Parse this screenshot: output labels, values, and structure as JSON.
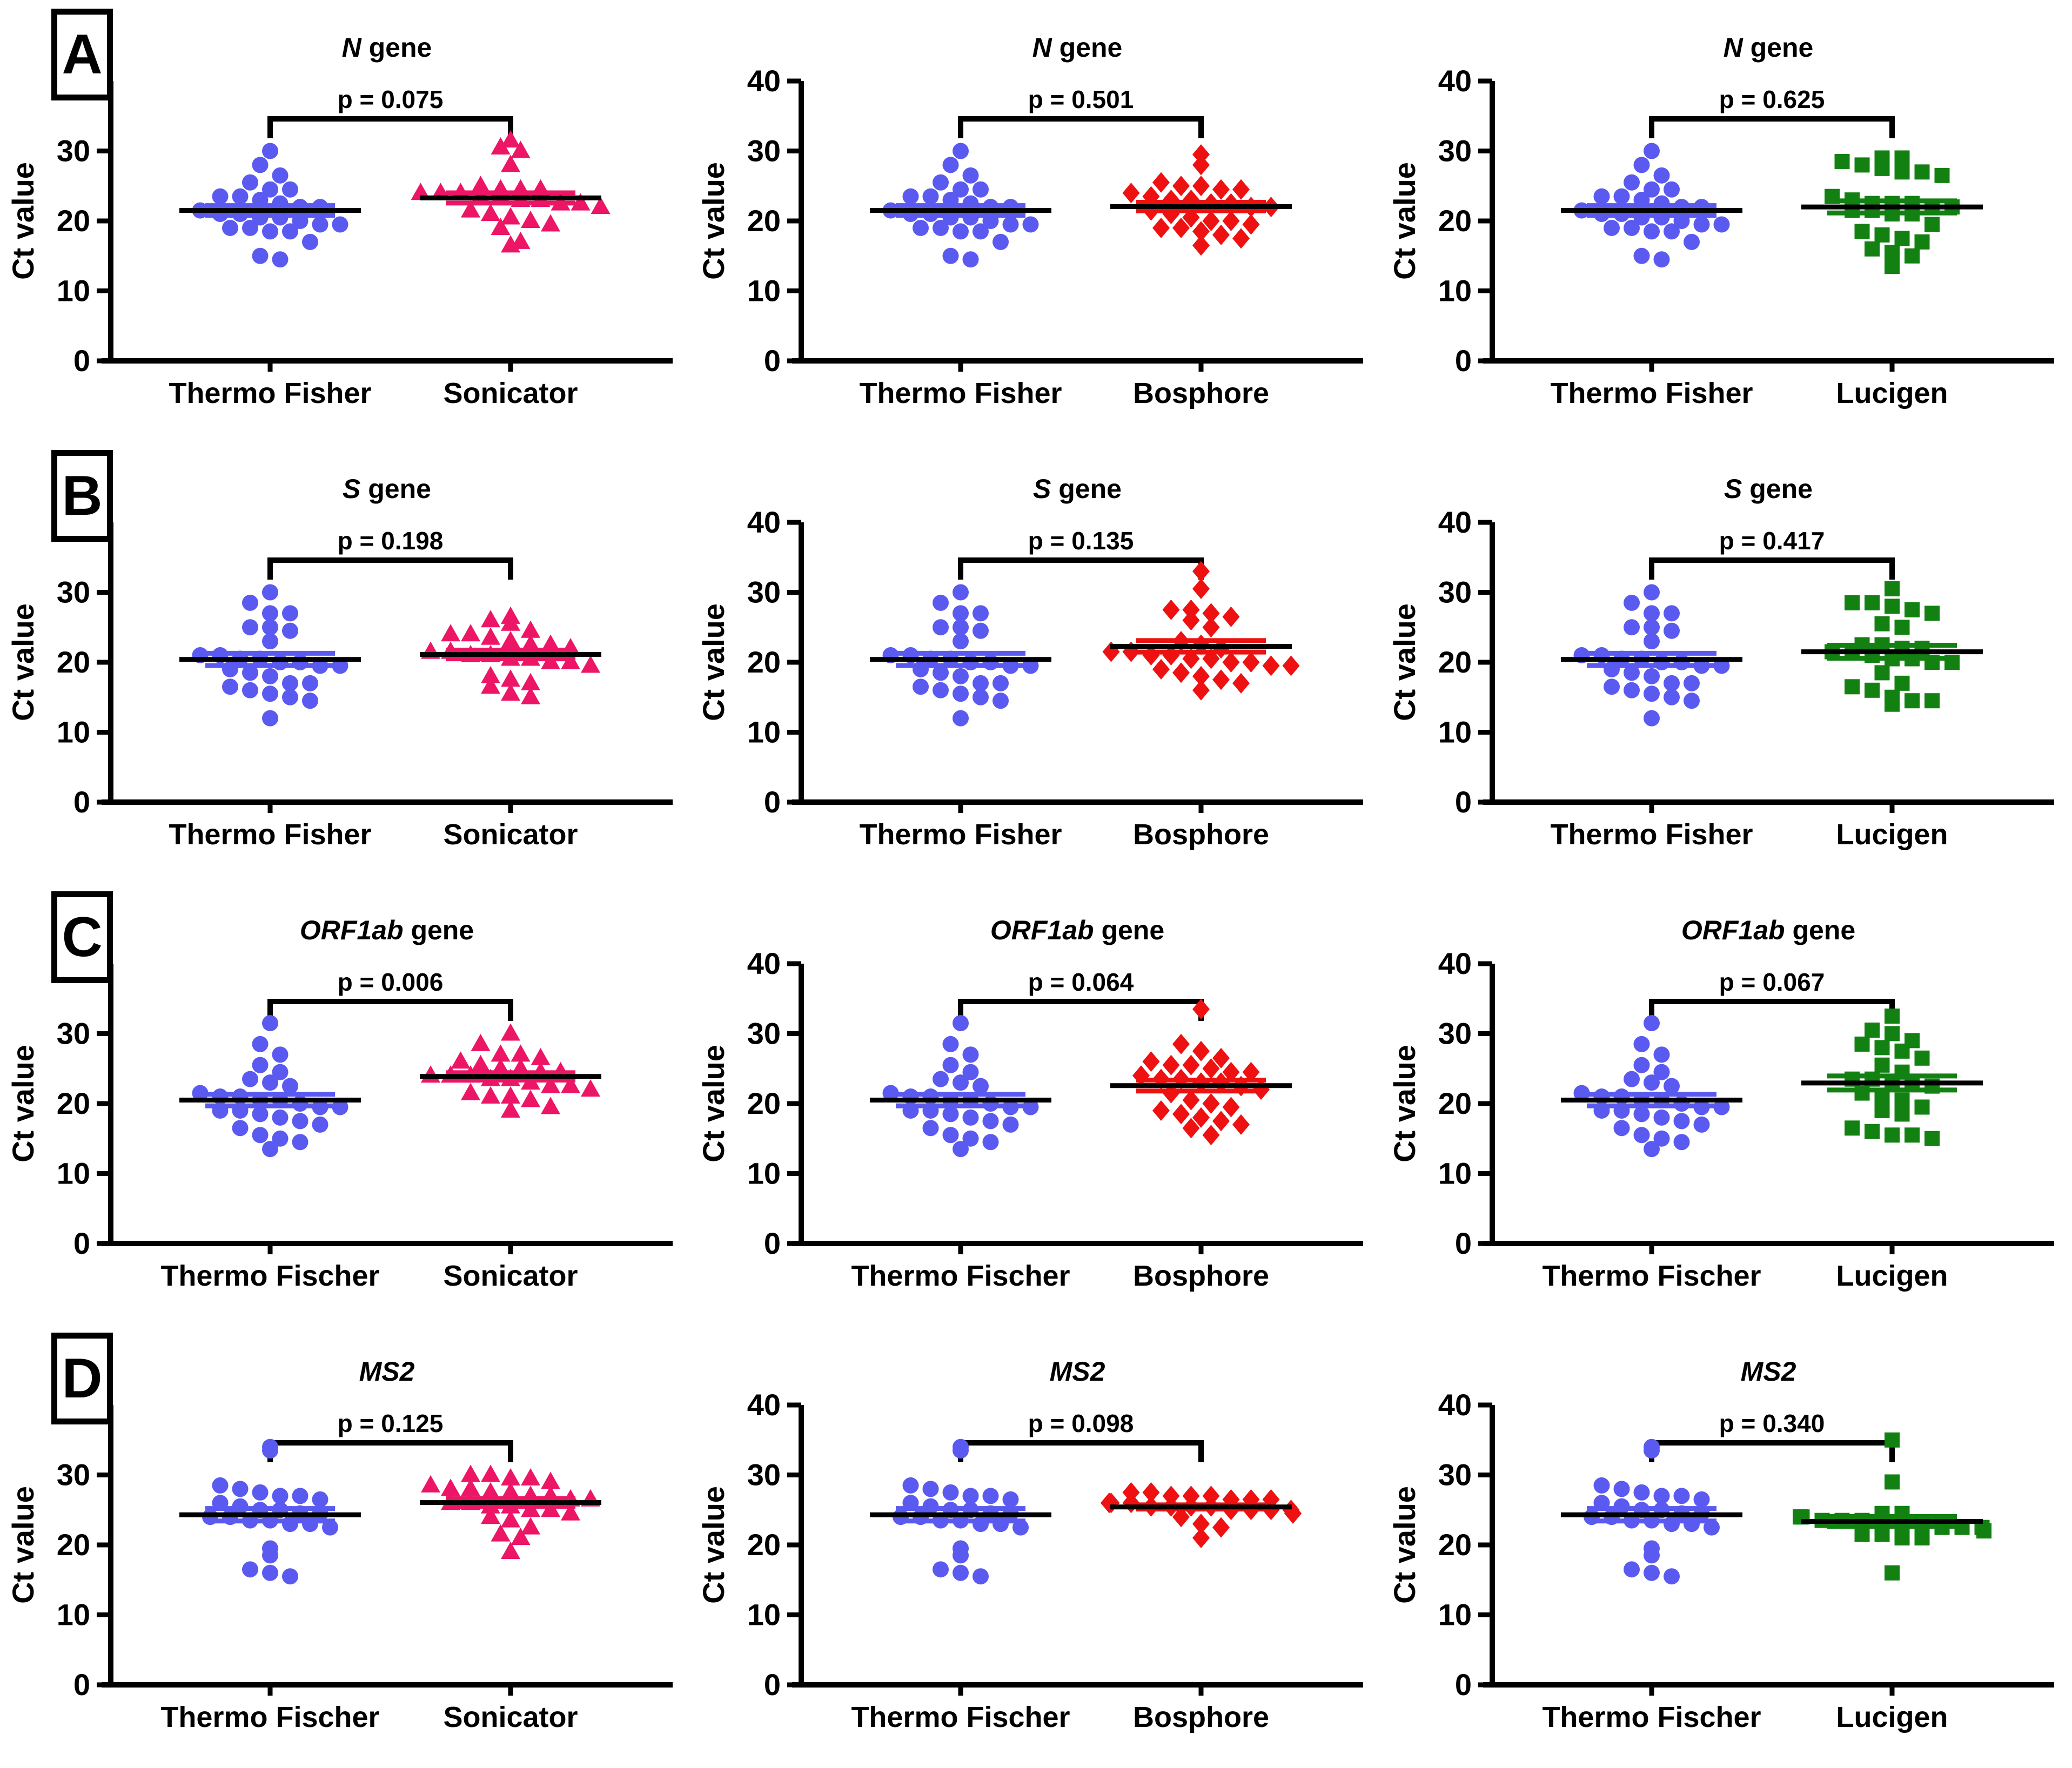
{
  "axis": {
    "ylabel": "Ct value",
    "yticks": [
      0,
      10,
      20,
      30,
      40
    ],
    "ylim": [
      0,
      40
    ]
  },
  "panel_labels": [
    "A",
    "B",
    "C",
    "D"
  ],
  "chart_data": [
    {
      "type": "scatter",
      "panel": "A",
      "title_italic": "N",
      "title_rest": " gene",
      "p_label": "p = 0.075",
      "ylabel": "Ct value",
      "ylim": [
        0,
        40
      ],
      "groups": [
        {
          "label": "Thermo Fisher",
          "marker": "circle",
          "color": "#5A5AF0",
          "values": [
            30,
            28,
            26.5,
            25.5,
            24.5,
            24.5,
            23.5,
            23.5,
            23,
            22.5,
            22,
            22,
            21.5,
            21,
            21,
            20.5,
            20.5,
            20,
            19.5,
            19.5,
            19,
            19,
            18.5,
            18.5,
            17,
            15,
            14.5
          ]
        },
        {
          "label": "Sonicator",
          "marker": "triangle",
          "color": "#EC1566",
          "values": [
            31.5,
            30.5,
            30,
            28,
            25,
            24.5,
            24.5,
            24.5,
            24,
            24,
            24,
            23.5,
            23.5,
            23,
            23,
            22.5,
            22.5,
            22,
            21.5,
            21,
            20.5,
            20,
            19.5,
            19,
            17,
            16.5
          ]
        }
      ]
    },
    {
      "type": "scatter",
      "panel": "A",
      "title_italic": "N",
      "title_rest": " gene",
      "p_label": "p = 0.501",
      "ylabel": "Ct value",
      "ylim": [
        0,
        40
      ],
      "groups": [
        {
          "label": "Thermo Fisher",
          "marker": "circle",
          "color": "#5A5AF0",
          "values": [
            30,
            28,
            26.5,
            25.5,
            24.5,
            24.5,
            23.5,
            23.5,
            23,
            22.5,
            22,
            22,
            21.5,
            21,
            21,
            20.5,
            20.5,
            20,
            19.5,
            19.5,
            19,
            19,
            18.5,
            18.5,
            17,
            15,
            14.5
          ]
        },
        {
          "label": "Bosphore",
          "marker": "diamond",
          "color": "#EE1111",
          "values": [
            29.5,
            28,
            25.5,
            25,
            25,
            24.5,
            24.5,
            24,
            23.5,
            23,
            23,
            22.5,
            22.5,
            22,
            22,
            21.5,
            21,
            20.5,
            20,
            20,
            19.5,
            19,
            19,
            18.5,
            18,
            17.5,
            16.5
          ]
        }
      ]
    },
    {
      "type": "scatter",
      "panel": "A",
      "title_italic": "N",
      "title_rest": " gene",
      "p_label": "p = 0.625",
      "ylabel": "Ct value",
      "ylim": [
        0,
        40
      ],
      "groups": [
        {
          "label": "Thermo Fisher",
          "marker": "circle",
          "color": "#5A5AF0",
          "values": [
            30,
            28,
            26.5,
            25.5,
            24.5,
            24.5,
            23.5,
            23.5,
            23,
            22.5,
            22,
            22,
            21.5,
            21,
            21,
            20.5,
            20.5,
            20,
            19.5,
            19.5,
            19,
            19,
            18.5,
            18.5,
            17,
            15,
            14.5
          ]
        },
        {
          "label": "Lucigen",
          "marker": "square",
          "color": "#128112",
          "values": [
            29,
            29,
            28.5,
            28,
            27.5,
            27,
            27,
            26.5,
            23.5,
            23,
            22.5,
            22.5,
            22.5,
            22,
            22,
            21.5,
            21.5,
            21,
            21,
            19.5,
            18.5,
            18,
            17.5,
            17,
            16,
            15.5,
            15,
            13.5
          ]
        }
      ]
    },
    {
      "type": "scatter",
      "panel": "B",
      "title_italic": "S",
      "title_rest": " gene",
      "p_label": "p = 0.198",
      "ylabel": "Ct value",
      "ylim": [
        0,
        40
      ],
      "groups": [
        {
          "label": "Thermo Fisher",
          "marker": "circle",
          "color": "#5A5AF0",
          "values": [
            30,
            28.5,
            27,
            27,
            25,
            25,
            24.5,
            23,
            21,
            21,
            20.5,
            20.5,
            20,
            20,
            19.5,
            19.5,
            19,
            18.5,
            18,
            17,
            17,
            16.5,
            16,
            15.5,
            15,
            14.5,
            12
          ]
        },
        {
          "label": "Sonicator",
          "marker": "triangle",
          "color": "#EC1566",
          "values": [
            26.5,
            26,
            25.5,
            24.5,
            24,
            24,
            23.5,
            23,
            22.5,
            22.5,
            22,
            21.5,
            21.5,
            21,
            21,
            20.5,
            20.5,
            20,
            20,
            19.5,
            18,
            17.5,
            17,
            16.5,
            15.5,
            15
          ]
        }
      ]
    },
    {
      "type": "scatter",
      "panel": "B",
      "title_italic": "S",
      "title_rest": " gene",
      "p_label": "p = 0.135",
      "ylabel": "Ct value",
      "ylim": [
        0,
        40
      ],
      "groups": [
        {
          "label": "Thermo Fisher",
          "marker": "circle",
          "color": "#5A5AF0",
          "values": [
            30,
            28.5,
            27,
            27,
            25,
            25,
            24.5,
            23,
            21,
            21,
            20.5,
            20.5,
            20,
            20,
            19.5,
            19.5,
            19,
            18.5,
            18,
            17,
            17,
            16.5,
            16,
            15.5,
            15,
            14.5,
            12
          ]
        },
        {
          "label": "Bosphore",
          "marker": "diamond",
          "color": "#EE1111",
          "values": [
            33,
            30.5,
            27.5,
            27.5,
            27,
            26.5,
            26,
            25,
            23,
            22.5,
            22,
            21.5,
            21.5,
            21,
            21,
            20.5,
            20.5,
            20,
            20,
            19.5,
            19.5,
            19,
            18.5,
            18,
            17.5,
            17,
            16
          ]
        }
      ]
    },
    {
      "type": "scatter",
      "panel": "B",
      "title_italic": "S",
      "title_rest": " gene",
      "p_label": "p = 0.417",
      "ylabel": "Ct value",
      "ylim": [
        0,
        40
      ],
      "groups": [
        {
          "label": "Thermo Fisher",
          "marker": "circle",
          "color": "#5A5AF0",
          "values": [
            30,
            28.5,
            27,
            27,
            25,
            25,
            24.5,
            23,
            21,
            21,
            20.5,
            20.5,
            20,
            20,
            19.5,
            19.5,
            19,
            18.5,
            18,
            17,
            17,
            16.5,
            16,
            15.5,
            15,
            14.5,
            12
          ]
        },
        {
          "label": "Lucigen",
          "marker": "square",
          "color": "#128112",
          "values": [
            30.5,
            28.5,
            28.5,
            28,
            27.5,
            27,
            25.5,
            25,
            22.5,
            22.5,
            22,
            22,
            21.5,
            21.5,
            21,
            20.5,
            20.5,
            20,
            20,
            18.5,
            17,
            16.5,
            16,
            15,
            14.5,
            14.5,
            14
          ]
        }
      ]
    },
    {
      "type": "scatter",
      "panel": "C",
      "title_italic": "ORF1ab",
      "title_rest": " gene",
      "p_label": "p = 0.006",
      "ylabel": "Ct value",
      "ylim": [
        0,
        40
      ],
      "groups": [
        {
          "label": "Thermo Fischer",
          "marker": "circle",
          "color": "#5A5AF0",
          "values": [
            31.5,
            28.5,
            27,
            25.5,
            24.5,
            23.5,
            23,
            22.5,
            21.5,
            21,
            21,
            20.5,
            20.5,
            20,
            19.5,
            19.5,
            19,
            19,
            18.5,
            18,
            17.5,
            17,
            16.5,
            15.5,
            15,
            14.5,
            13.5
          ]
        },
        {
          "label": "Sonicator",
          "marker": "triangle",
          "color": "#EC1566",
          "values": [
            30,
            28.5,
            27,
            27,
            26.5,
            26,
            25.5,
            25,
            25,
            24.5,
            24.5,
            24,
            24,
            24,
            23.5,
            23.5,
            23,
            22.5,
            22.5,
            22,
            21.5,
            21,
            21,
            20.5,
            19.5,
            19
          ]
        }
      ]
    },
    {
      "type": "scatter",
      "panel": "C",
      "title_italic": "ORF1ab",
      "title_rest": " gene",
      "p_label": "p = 0.064",
      "ylabel": "Ct value",
      "ylim": [
        0,
        40
      ],
      "groups": [
        {
          "label": "Thermo Fischer",
          "marker": "circle",
          "color": "#5A5AF0",
          "values": [
            31.5,
            28.5,
            27,
            25.5,
            24.5,
            23.5,
            23,
            22.5,
            21.5,
            21,
            21,
            20.5,
            20.5,
            20,
            19.5,
            19.5,
            19,
            19,
            18.5,
            18,
            17.5,
            17,
            16.5,
            15.5,
            15,
            14.5,
            13.5
          ]
        },
        {
          "label": "Bosphore",
          "marker": "diamond",
          "color": "#EE1111",
          "values": [
            33.5,
            28.5,
            27.5,
            26.5,
            26,
            25.5,
            25.5,
            25,
            24.5,
            24.5,
            24,
            23.5,
            23.5,
            23,
            23,
            22.5,
            22,
            21.5,
            20.5,
            20,
            19.5,
            19,
            18.5,
            18,
            17.5,
            17,
            16.5,
            15.5
          ]
        }
      ]
    },
    {
      "type": "scatter",
      "panel": "C",
      "title_italic": "ORF1ab",
      "title_rest": " gene",
      "p_label": "p = 0.067",
      "ylabel": "Ct value",
      "ylim": [
        0,
        40
      ],
      "groups": [
        {
          "label": "Thermo Fischer",
          "marker": "circle",
          "color": "#5A5AF0",
          "values": [
            31.5,
            28.5,
            27,
            25.5,
            24.5,
            23.5,
            23,
            22.5,
            21.5,
            21,
            21,
            20.5,
            20.5,
            20,
            19.5,
            19.5,
            19,
            19,
            18.5,
            18,
            17.5,
            17,
            16.5,
            15.5,
            15,
            14.5,
            13.5
          ]
        },
        {
          "label": "Lucigen",
          "marker": "square",
          "color": "#128112",
          "values": [
            32.5,
            30.5,
            30,
            29,
            28.5,
            28,
            27.5,
            26.5,
            25.5,
            24.5,
            23.5,
            23.5,
            23,
            23,
            22.5,
            21.5,
            21,
            20.5,
            19.5,
            19,
            18.5,
            16.5,
            16,
            15.5,
            15.5,
            15
          ]
        }
      ]
    },
    {
      "type": "scatter",
      "panel": "D",
      "title_italic": "MS2",
      "title_rest": "",
      "p_label": "p = 0.125",
      "ylabel": "Ct value",
      "ylim": [
        0,
        40
      ],
      "groups": [
        {
          "label": "Thermo Fischer",
          "marker": "circle",
          "color": "#5A5AF0",
          "values": [
            34,
            33.5,
            28.5,
            28,
            27.5,
            27,
            27,
            26.5,
            26,
            25.5,
            25,
            25,
            24.5,
            24.5,
            24,
            24,
            23.5,
            23.5,
            23,
            23,
            22.5,
            19.5,
            18.5,
            16.5,
            16,
            15.5
          ]
        },
        {
          "label": "Sonicator",
          "marker": "triangle",
          "color": "#EC1566",
          "values": [
            30,
            30,
            29.5,
            29.5,
            29,
            28.5,
            28,
            28,
            27.5,
            27.5,
            27,
            27,
            26.5,
            26.5,
            26,
            26,
            25.5,
            25.5,
            25,
            25,
            24.5,
            24,
            23.5,
            22.5,
            21.5,
            21,
            19
          ]
        }
      ]
    },
    {
      "type": "scatter",
      "panel": "D",
      "title_italic": "MS2",
      "title_rest": "",
      "p_label": "p = 0.098",
      "ylabel": "Ct value",
      "ylim": [
        0,
        40
      ],
      "groups": [
        {
          "label": "Thermo Fischer",
          "marker": "circle",
          "color": "#5A5AF0",
          "values": [
            34,
            33.5,
            28.5,
            28,
            27.5,
            27,
            27,
            26.5,
            26,
            25.5,
            25,
            25,
            24.5,
            24.5,
            24,
            24,
            23.5,
            23.5,
            23,
            23,
            22.5,
            19.5,
            18.5,
            16.5,
            16,
            15.5
          ]
        },
        {
          "label": "Bosphore",
          "marker": "diamond",
          "color": "#EE1111",
          "values": [
            27.5,
            27.5,
            27,
            27,
            27,
            26.5,
            26.5,
            26.5,
            26,
            26,
            26,
            26,
            25.5,
            25.5,
            25.5,
            25.5,
            25,
            25,
            25,
            25,
            24.5,
            24.5,
            24,
            23,
            22.5,
            21
          ]
        }
      ]
    },
    {
      "type": "scatter",
      "panel": "D",
      "title_italic": "MS2",
      "title_rest": "",
      "p_label": "p = 0.340",
      "ylabel": "Ct value",
      "ylim": [
        0,
        40
      ],
      "groups": [
        {
          "label": "Thermo Fischer",
          "marker": "circle",
          "color": "#5A5AF0",
          "values": [
            34,
            33.5,
            28.5,
            28,
            27.5,
            27,
            27,
            26.5,
            26,
            25.5,
            25,
            25,
            24.5,
            24.5,
            24,
            24,
            23.5,
            23.5,
            23,
            23,
            22.5,
            19.5,
            18.5,
            16.5,
            16,
            15.5
          ]
        },
        {
          "label": "Lucigen",
          "marker": "square",
          "color": "#128112",
          "values": [
            35,
            29,
            24.5,
            24.5,
            24,
            24,
            24,
            23.5,
            23.5,
            23.5,
            23,
            23,
            23,
            22.5,
            22.5,
            22.5,
            22,
            22,
            21.5,
            21.5,
            21,
            21,
            16
          ]
        }
      ]
    }
  ]
}
